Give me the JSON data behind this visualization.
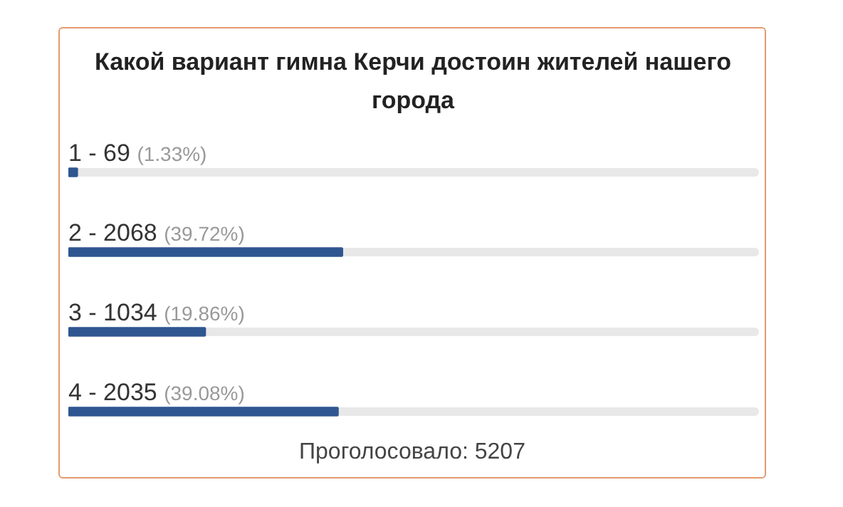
{
  "chart_data": {
    "type": "bar",
    "orientation": "horizontal",
    "title": "Какой вариант гимна Керчи достоин жителей нашего города",
    "categories": [
      "1 - 69",
      "2 - 2068",
      "3 - 1034",
      "4 - 2035"
    ],
    "values": [
      1.33,
      39.72,
      19.86,
      39.08
    ],
    "value_labels": [
      "(1.33%)",
      "(39.72%)",
      "(19.86%)",
      "(39.08%)"
    ],
    "color": "#2f5690",
    "xlim": [
      0,
      100
    ],
    "legend": false,
    "tick_labels": false,
    "annotations": [
      "Проголосовало: 5207"
    ]
  }
}
